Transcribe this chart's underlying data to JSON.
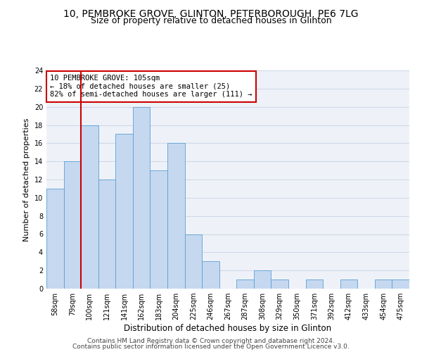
{
  "title1": "10, PEMBROKE GROVE, GLINTON, PETERBOROUGH, PE6 7LG",
  "title2": "Size of property relative to detached houses in Glinton",
  "xlabel": "Distribution of detached houses by size in Glinton",
  "ylabel": "Number of detached properties",
  "categories": [
    "58sqm",
    "79sqm",
    "100sqm",
    "121sqm",
    "141sqm",
    "162sqm",
    "183sqm",
    "204sqm",
    "225sqm",
    "246sqm",
    "267sqm",
    "287sqm",
    "308sqm",
    "329sqm",
    "350sqm",
    "371sqm",
    "392sqm",
    "412sqm",
    "433sqm",
    "454sqm",
    "475sqm"
  ],
  "values": [
    11,
    14,
    18,
    12,
    17,
    20,
    13,
    16,
    6,
    3,
    0,
    1,
    2,
    1,
    0,
    1,
    0,
    1,
    0,
    1,
    1
  ],
  "bar_color": "#c5d8f0",
  "bar_edge_color": "#5a9fd4",
  "vline_index": 2,
  "vline_color": "#cc0000",
  "annotation_line1": "10 PEMBROKE GROVE: 105sqm",
  "annotation_line2": "← 18% of detached houses are smaller (25)",
  "annotation_line3": "82% of semi-detached houses are larger (111) →",
  "annotation_box_color": "#cc0000",
  "ylim": [
    0,
    24
  ],
  "yticks": [
    0,
    2,
    4,
    6,
    8,
    10,
    12,
    14,
    16,
    18,
    20,
    22,
    24
  ],
  "grid_color": "#d0d8e8",
  "bg_color": "#eef2f8",
  "footer1": "Contains HM Land Registry data © Crown copyright and database right 2024.",
  "footer2": "Contains public sector information licensed under the Open Government Licence v3.0.",
  "title1_fontsize": 10,
  "title2_fontsize": 9,
  "xlabel_fontsize": 8.5,
  "ylabel_fontsize": 8,
  "tick_fontsize": 7,
  "annotation_fontsize": 7.5,
  "footer_fontsize": 6.5
}
